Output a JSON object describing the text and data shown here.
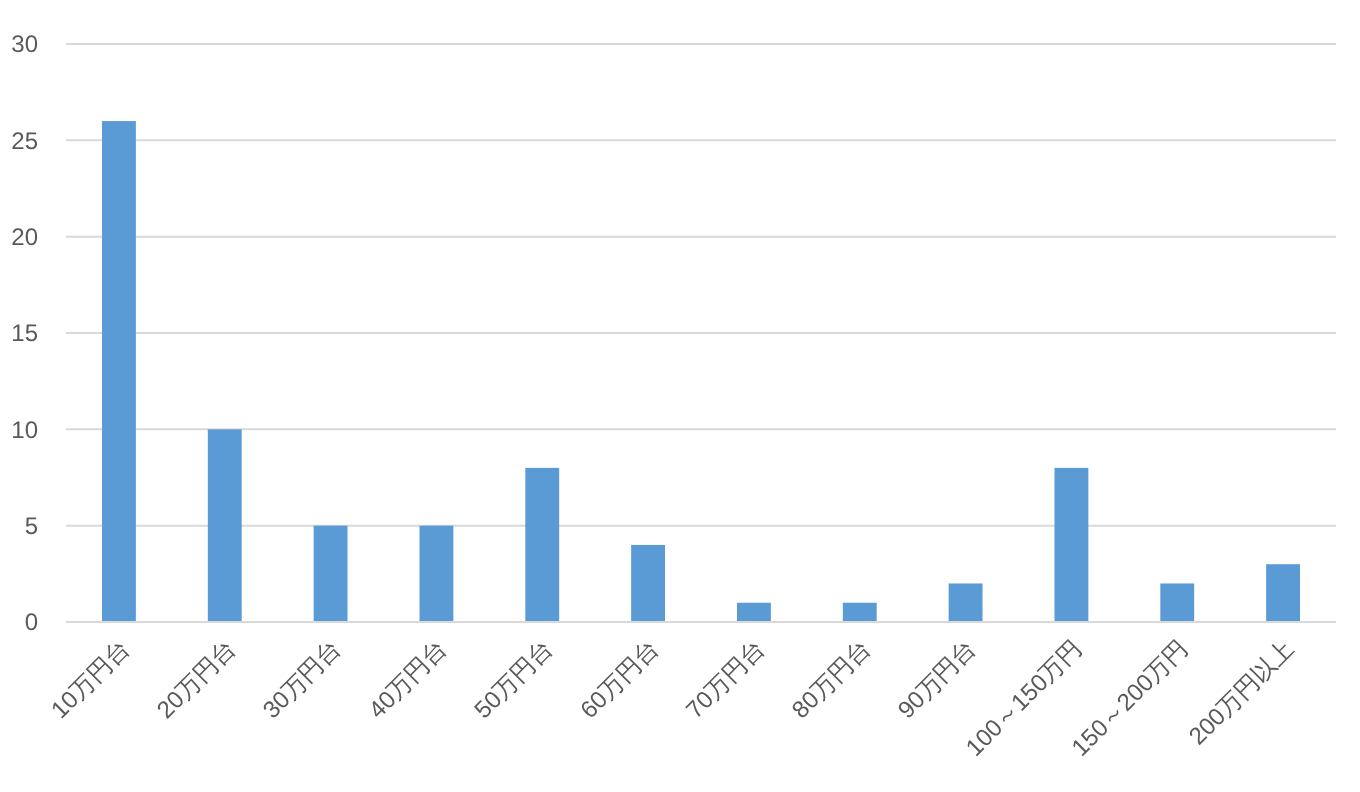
{
  "chart_data": {
    "type": "bar",
    "categories": [
      "10万円台",
      "20万円台",
      "30万円台",
      "40万円台",
      "50万円台",
      "60万円台",
      "70万円台",
      "80万円台",
      "90万円台",
      "100～150万円",
      "150～200万円",
      "200万円以上"
    ],
    "values": [
      26,
      10,
      5,
      5,
      8,
      4,
      1,
      1,
      2,
      8,
      2,
      3
    ],
    "color": "#5b9bd5",
    "ylim": [
      0,
      30
    ],
    "yticks": [
      0,
      5,
      10,
      15,
      20,
      25,
      30
    ],
    "grid": "y"
  }
}
